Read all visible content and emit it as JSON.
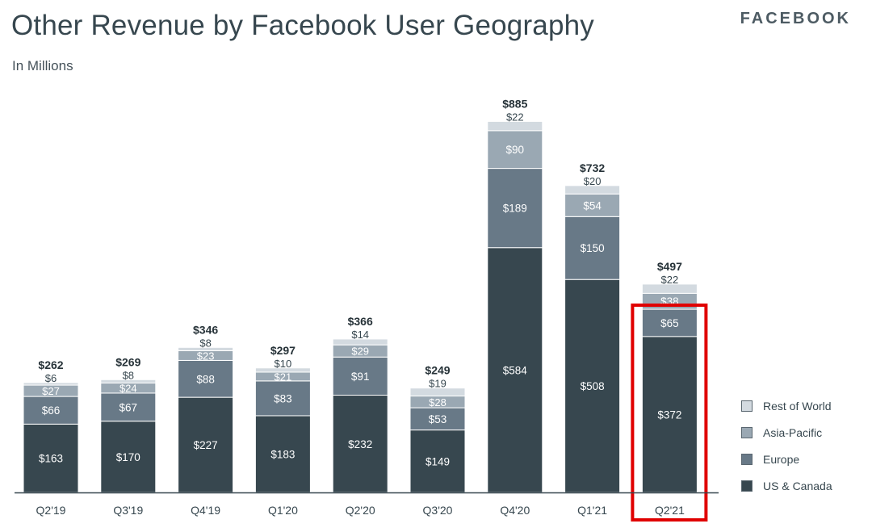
{
  "header": {
    "title": "Other Revenue by Facebook User Geography",
    "subtitle": "In Millions",
    "brand": "FACEBOOK"
  },
  "colors": {
    "us_canada": "#37474f",
    "europe": "#687987",
    "asia_pacific": "#9aa8b3",
    "rest_of_world": "#d3dae0",
    "highlight": "#e00000"
  },
  "chart_data": {
    "type": "bar",
    "stacked": true,
    "title": "Other Revenue by Facebook User Geography",
    "subtitle": "In Millions",
    "xlabel": "",
    "ylabel": "",
    "ylim": [
      0,
      900
    ],
    "grid": false,
    "legend_position": "bottom-right",
    "categories": [
      "Q2'19",
      "Q3'19",
      "Q4'19",
      "Q1'20",
      "Q2'20",
      "Q3'20",
      "Q4'20",
      "Q1'21",
      "Q2'21"
    ],
    "totals": [
      262,
      269,
      346,
      297,
      366,
      249,
      885,
      732,
      497
    ],
    "total_labels": [
      "$262",
      "$269",
      "$346",
      "$297",
      "$366",
      "$249",
      "$885",
      "$732",
      "$497"
    ],
    "series": [
      {
        "name": "US & Canada",
        "color_key": "us_canada",
        "values": [
          163,
          170,
          227,
          183,
          232,
          149,
          584,
          508,
          372
        ],
        "labels": [
          "$163",
          "$170",
          "$227",
          "$183",
          "$232",
          "$149",
          "$584",
          "$508",
          "$372"
        ]
      },
      {
        "name": "Europe",
        "color_key": "europe",
        "values": [
          66,
          67,
          88,
          83,
          91,
          53,
          189,
          150,
          65
        ],
        "labels": [
          "$66",
          "$67",
          "$88",
          "$83",
          "$91",
          "$53",
          "$189",
          "$150",
          "$65"
        ]
      },
      {
        "name": "Asia-Pacific",
        "color_key": "asia_pacific",
        "values": [
          27,
          24,
          23,
          21,
          29,
          28,
          90,
          54,
          38
        ],
        "labels": [
          "$27",
          "$24",
          "$23",
          "$21",
          "$29",
          "$28",
          "$90",
          "$54",
          "$38"
        ]
      },
      {
        "name": "Rest of World",
        "color_key": "rest_of_world",
        "values": [
          6,
          8,
          8,
          10,
          14,
          19,
          22,
          20,
          22
        ],
        "labels": [
          "$6",
          "$8",
          "$8",
          "$10",
          "$14",
          "$19",
          "$22",
          "$20",
          "$22"
        ]
      }
    ],
    "highlighted_category": "Q2'21"
  },
  "legend": {
    "items": [
      {
        "label": "Rest of World",
        "color_key": "rest_of_world"
      },
      {
        "label": "Asia-Pacific",
        "color_key": "asia_pacific"
      },
      {
        "label": "Europe",
        "color_key": "europe"
      },
      {
        "label": "US & Canada",
        "color_key": "us_canada"
      }
    ]
  }
}
